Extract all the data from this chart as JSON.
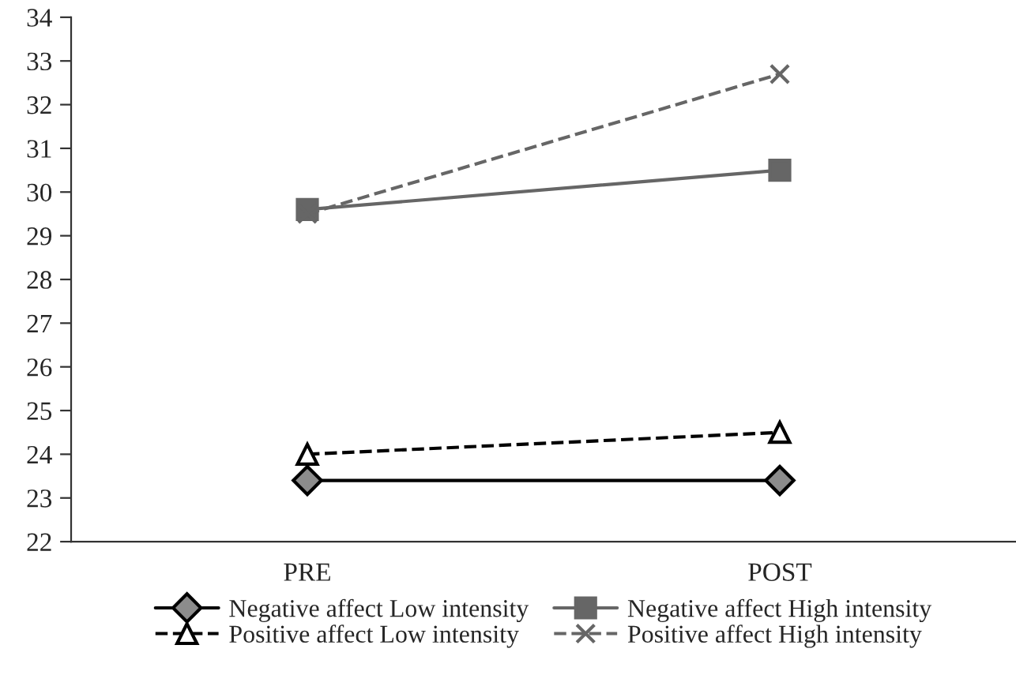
{
  "chart_data": {
    "type": "line",
    "categories": [
      "PRE",
      "POST"
    ],
    "series": [
      {
        "name": "Negative affect Low intensity",
        "color": "#000000",
        "values": [
          23.4,
          23.4
        ],
        "marker": "diamond",
        "line_style": "solid"
      },
      {
        "name": "Positive affect Low intensity",
        "color": "#000000",
        "values": [
          24.0,
          24.5
        ],
        "marker": "triangle",
        "line_style": "dashed"
      },
      {
        "name": "Negative affect High intensity",
        "color": "#666666",
        "values": [
          29.6,
          30.5
        ],
        "marker": "square",
        "line_style": "solid"
      },
      {
        "name": "Positive affect High intensity",
        "color": "#666666",
        "values": [
          29.5,
          32.7
        ],
        "marker": "cross",
        "line_style": "dashed"
      }
    ],
    "ylim": [
      22,
      34
    ],
    "yticks": [
      22,
      23,
      24,
      25,
      26,
      27,
      28,
      29,
      30,
      31,
      32,
      33,
      34
    ],
    "grid": false,
    "legend": "bottom"
  }
}
